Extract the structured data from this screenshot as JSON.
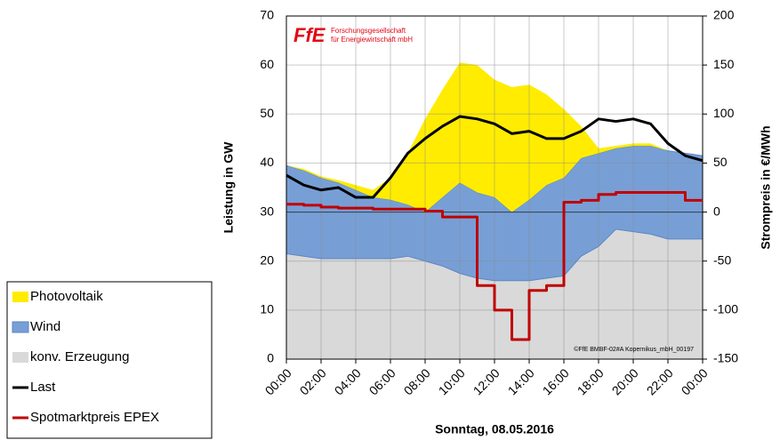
{
  "chart_data": {
    "type": "stacked-area-line",
    "x_label": "Sonntag, 08.05.2016",
    "y_label": "Leistung in GW",
    "y2_label": "Strompreis in €/MWh",
    "logo": "FfE",
    "logo_text": [
      "Forschungsgesellschaft",
      "für Energiewirtschaft mbH"
    ],
    "annotation": "©FfE BMBF-02#A Kopernikus_mbH_00197",
    "x": [
      0,
      1,
      2,
      3,
      4,
      5,
      6,
      7,
      8,
      9,
      10,
      11,
      12,
      13,
      14,
      15,
      16,
      17,
      18,
      19,
      20,
      21,
      22,
      23,
      24
    ],
    "xlim": [
      0,
      24
    ],
    "xticks": [
      {
        "value": 0,
        "label": "00:00"
      },
      {
        "value": 2,
        "label": "02:00"
      },
      {
        "value": 4,
        "label": "04:00"
      },
      {
        "value": 6,
        "label": "06:00"
      },
      {
        "value": 8,
        "label": "08:00"
      },
      {
        "value": 10,
        "label": "10:00"
      },
      {
        "value": 12,
        "label": "12:00"
      },
      {
        "value": 14,
        "label": "14:00"
      },
      {
        "value": 16,
        "label": "16:00"
      },
      {
        "value": 18,
        "label": "18:00"
      },
      {
        "value": 20,
        "label": "20:00"
      },
      {
        "value": 22,
        "label": "22:00"
      },
      {
        "value": 24,
        "label": "00:00"
      }
    ],
    "ylim": [
      0,
      70
    ],
    "yticks": [
      0,
      10,
      20,
      30,
      40,
      50,
      60,
      70
    ],
    "y2lim": [
      -150,
      200
    ],
    "y2ticks": [
      -150,
      -100,
      -50,
      0,
      50,
      100,
      150,
      200
    ],
    "grid": true,
    "legend": "left",
    "series": [
      {
        "name": "Photovoltaik",
        "color": "#ffec00",
        "kind": "area",
        "values": [
          0,
          0.3,
          0.3,
          0.5,
          1,
          1.5,
          4.5,
          10.5,
          19,
          22,
          24.5,
          26,
          24,
          25.5,
          23.5,
          18.5,
          14,
          6.5,
          1,
          0.5,
          0.5,
          0.5,
          0,
          0,
          0
        ]
      },
      {
        "name": "Wind",
        "color": "#779fd6",
        "kind": "area",
        "values": [
          18,
          17.5,
          16.5,
          15.5,
          14,
          12.5,
          12,
          10.5,
          10,
          14,
          18.5,
          17.5,
          17,
          14,
          16.5,
          19,
          20,
          20,
          19,
          16.5,
          17.5,
          18,
          18,
          17.5,
          17
        ]
      },
      {
        "name": "konv. Erzeugung",
        "color": "#d9d9d9",
        "kind": "area",
        "values": [
          21.5,
          21,
          20.5,
          20.5,
          20.5,
          20.5,
          20.5,
          21,
          20,
          19,
          17.5,
          16.5,
          16,
          16,
          16,
          16.5,
          17,
          21,
          23,
          26.5,
          26,
          25.5,
          24.5,
          24.5,
          24.5
        ]
      },
      {
        "name": "Last",
        "color": "#000000",
        "kind": "line",
        "values": [
          37.5,
          35.5,
          34.5,
          35,
          33,
          33,
          37,
          42,
          45,
          47.5,
          49.5,
          49,
          48,
          46,
          46.5,
          45,
          45,
          46.5,
          49,
          48.5,
          49,
          48,
          44,
          41.5,
          40.5
        ]
      },
      {
        "name": "Spotmarktpreis EPEX",
        "color": "#c00000",
        "kind": "step",
        "axis": "y2",
        "values": [
          8,
          7,
          5,
          4,
          4,
          3,
          3,
          3,
          1,
          -5,
          -5,
          -75,
          -100,
          -130,
          -80,
          -75,
          10,
          12,
          18,
          20,
          20,
          20,
          20,
          12,
          12
        ]
      }
    ]
  }
}
